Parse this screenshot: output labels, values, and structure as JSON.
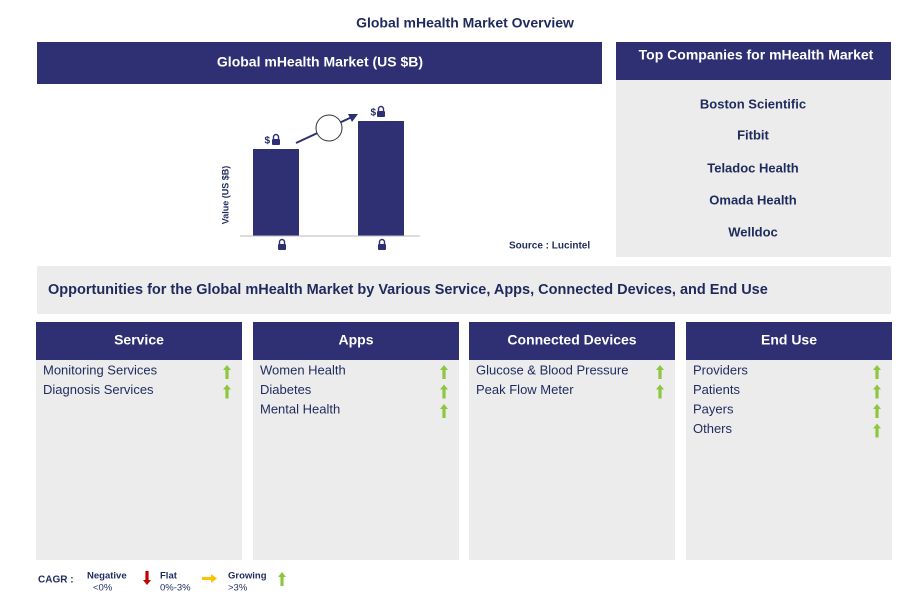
{
  "title": "Global mHealth Market Overview",
  "market_panel": {
    "title": "Global mHealth Market (US $B)",
    "y_axis_label": "Value (US $B)",
    "bar_labels": [
      "$",
      "$"
    ],
    "source": "Source : Lucintel"
  },
  "companies": {
    "title": "Top Companies for mHealth Market",
    "items": [
      "Boston Scientific",
      "Fitbit",
      "Teladoc Health",
      "Omada Health",
      "Welldoc"
    ]
  },
  "opportunities": {
    "title": "Opportunities for the Global mHealth Market by Various Service, Apps, Connected Devices, and End Use"
  },
  "segments": [
    {
      "title": "Service",
      "items": [
        "Monitoring Services",
        "Diagnosis Services"
      ]
    },
    {
      "title": "Apps",
      "items": [
        "Women Health",
        "Diabetes",
        "Mental Health"
      ]
    },
    {
      "title": "Connected Devices",
      "items": [
        "Glucose & Blood Pressure",
        "Peak Flow Meter"
      ]
    },
    {
      "title": "End Use",
      "items": [
        "Providers",
        "Patients",
        "Payers",
        "Others"
      ]
    }
  ],
  "legend": {
    "label": "CAGR :",
    "items": [
      {
        "name": "Negative",
        "range": "<0%"
      },
      {
        "name": "Flat",
        "range": "0%-3%"
      },
      {
        "name": "Growing",
        "range": ">3%"
      }
    ]
  }
}
